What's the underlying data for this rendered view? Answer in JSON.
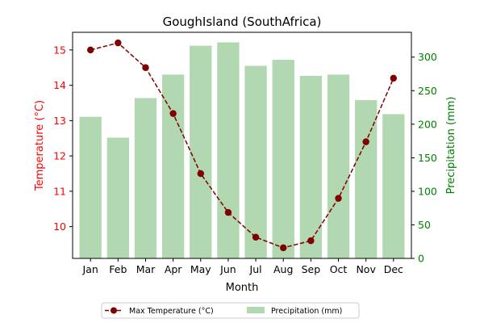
{
  "chart_data": {
    "type": "bar+line",
    "title": "GoughIsland (SouthAfrica)",
    "xlabel": "Month",
    "ylabel_left": "Temperature (°C)",
    "ylabel_right": "Precipitation (mm)",
    "categories": [
      "Jan",
      "Feb",
      "Mar",
      "Apr",
      "May",
      "Jun",
      "Jul",
      "Aug",
      "Sep",
      "Oct",
      "Nov",
      "Dec"
    ],
    "ylim_left": [
      9.1,
      15.5
    ],
    "yticks_left": [
      "10",
      "11",
      "12",
      "13",
      "14",
      "15"
    ],
    "ylim_right": [
      0,
      337
    ],
    "yticks_right": [
      "0",
      "50",
      "100",
      "150",
      "200",
      "250",
      "300"
    ],
    "series": [
      {
        "name": "Max Temperature (°C)",
        "axis": "left",
        "kind": "line",
        "values": [
          15.0,
          15.2,
          14.5,
          13.2,
          11.5,
          10.4,
          9.7,
          9.4,
          9.6,
          10.8,
          12.4,
          14.2
        ]
      },
      {
        "name": "Precipitation (mm)",
        "axis": "right",
        "kind": "bar",
        "values": [
          211,
          180,
          239,
          274,
          317,
          322,
          287,
          296,
          272,
          274,
          236,
          215
        ]
      }
    ],
    "legend_position": "bottom",
    "colors": {
      "line": "#800000",
      "bar": "#b1d8b1",
      "left_axis": "#ff0000",
      "right_axis": "#008000"
    },
    "grid": false
  }
}
